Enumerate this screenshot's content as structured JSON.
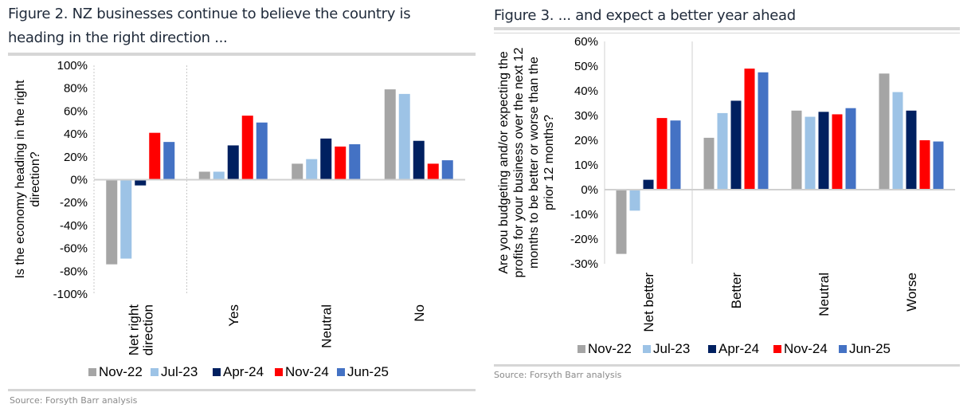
{
  "fig2": {
    "title_line1": "Figure 2. NZ businesses continue to believe the country is",
    "title_line2": "heading in the right direction ...",
    "source": "Source: Forsyth Barr analysis"
  },
  "fig3": {
    "title": "Figure 3. ... and expect a better year ahead",
    "source": "Source: Forsyth Barr analysis"
  },
  "colors": {
    "Nov-22": "#a5a5a5",
    "Jul-23": "#9dc3e6",
    "Apr-24": "#002060",
    "Nov-24": "#ff0000",
    "Jun-25": "#4472c4"
  },
  "chart_data": [
    {
      "type": "bar",
      "title": "Figure 2. NZ businesses continue to believe the country is heading in the right direction ...",
      "ylabel": "Is the economy heading in the right direction?",
      "ylabel_lines": [
        "Is the economy heading in the right",
        "direction?"
      ],
      "xlabel": "",
      "categories": [
        "Net right direction",
        "Yes",
        "Neutral",
        "No"
      ],
      "category_lines": [
        [
          "Net right",
          "direction"
        ],
        [
          "Yes"
        ],
        [
          "Neutral"
        ],
        [
          "No"
        ]
      ],
      "ylim": [
        -100,
        100
      ],
      "yticks": [
        100,
        80,
        60,
        40,
        20,
        0,
        -20,
        -40,
        -60,
        -80,
        -100
      ],
      "ytick_labels": [
        "100%",
        "80%",
        "60%",
        "40%",
        "20%",
        "0%",
        "-20%",
        "-40%",
        "-60%",
        "-80%",
        "-100%"
      ],
      "legend": "bottom",
      "series": [
        {
          "name": "Nov-22",
          "values": [
            -74,
            7,
            14,
            79
          ]
        },
        {
          "name": "Jul-23",
          "values": [
            -69,
            7,
            18,
            75
          ]
        },
        {
          "name": "Apr-24",
          "values": [
            -5,
            30,
            36,
            34
          ]
        },
        {
          "name": "Nov-24",
          "values": [
            41,
            56,
            29,
            14
          ]
        },
        {
          "name": "Jun-25",
          "values": [
            33,
            50,
            31,
            17
          ]
        }
      ]
    },
    {
      "type": "bar",
      "title": "Figure 3. ... and expect a better year ahead",
      "ylabel": "Are you budgeting and/or expecting the profits for your business over the next 12 months to be better or worse than the prior 12 months?",
      "ylabel_lines": [
        "Are you budgeting and/or expecting the",
        "profits for your business over the next 12",
        "months to be better or worse than the",
        "prior 12 months?"
      ],
      "xlabel": "",
      "categories": [
        "Net better",
        "Better",
        "Neutral",
        "Worse"
      ],
      "category_lines": [
        [
          "Net better"
        ],
        [
          "Better"
        ],
        [
          "Neutral"
        ],
        [
          "Worse"
        ]
      ],
      "ylim": [
        -30,
        60
      ],
      "yticks": [
        60,
        50,
        40,
        30,
        20,
        10,
        0,
        -10,
        -20,
        -30
      ],
      "ytick_labels": [
        "60%",
        "50%",
        "40%",
        "30%",
        "20%",
        "10%",
        "0%",
        "-10%",
        "-20%",
        "-30%"
      ],
      "legend": "bottom",
      "series": [
        {
          "name": "Nov-22",
          "values": [
            -26,
            21,
            32,
            47
          ]
        },
        {
          "name": "Jul-23",
          "values": [
            -8.5,
            31,
            29.5,
            39.5
          ]
        },
        {
          "name": "Apr-24",
          "values": [
            4,
            36,
            31.5,
            32
          ]
        },
        {
          "name": "Nov-24",
          "values": [
            29,
            49,
            30.5,
            20
          ]
        },
        {
          "name": "Jun-25",
          "values": [
            28,
            47.5,
            33,
            19.5
          ]
        }
      ]
    }
  ]
}
